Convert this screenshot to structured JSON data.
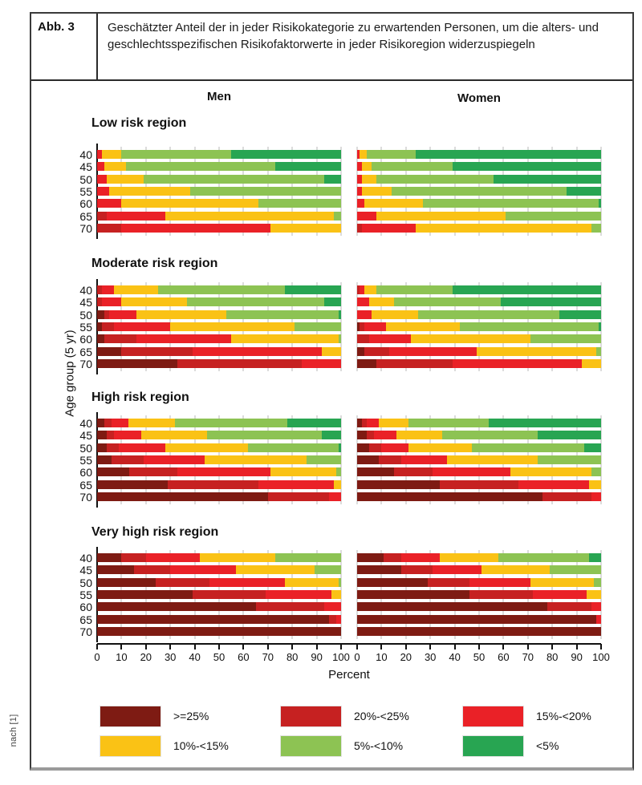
{
  "figure": {
    "label": "Abb. 3",
    "caption": "Geschätzter Anteil der in jeder Risikokategorie zu erwartenden Personen, um die alters- und geschlechtsspezifischen Risikofaktorwerte in jeder Risikoregion widerzuspiegeln",
    "source_note": "nach [1]"
  },
  "chart_data": {
    "type": "bar",
    "orientation": "horizontal",
    "stacked": true,
    "units": "percent",
    "column_headers": [
      "Men",
      "Women"
    ],
    "ylabel": "Age group (5 yr)",
    "xlabel": "Percent",
    "x_ticks": [
      0,
      10,
      20,
      30,
      40,
      50,
      60,
      70,
      80,
      90,
      100
    ],
    "xlim": [
      0,
      100
    ],
    "grid": true,
    "age_groups": [
      "40",
      "45",
      "50",
      "55",
      "60",
      "65",
      "70"
    ],
    "categories": [
      ">=25%",
      "20%-<25%",
      "15%-<20%",
      "10%-<15%",
      "5%-<10%",
      "<5%"
    ],
    "colors": [
      "#7E1B13",
      "#C62121",
      "#EA2127",
      "#FAC215",
      "#8DC353",
      "#28A552"
    ],
    "regions": [
      {
        "name": "Low risk region",
        "men": [
          [
            0,
            0,
            2,
            8,
            45,
            45
          ],
          [
            0,
            0,
            3,
            9,
            61,
            27
          ],
          [
            0,
            0,
            4,
            15,
            74,
            7
          ],
          [
            0,
            0,
            5,
            33,
            62,
            0
          ],
          [
            0,
            0,
            10,
            56,
            34,
            0
          ],
          [
            0,
            4,
            24,
            69,
            3,
            0
          ],
          [
            0,
            10,
            61,
            29,
            0,
            0
          ]
        ],
        "women": [
          [
            0,
            0,
            1,
            3,
            20,
            76
          ],
          [
            0,
            0,
            2,
            4,
            33,
            61
          ],
          [
            0,
            0,
            2,
            6,
            48,
            44
          ],
          [
            0,
            0,
            2,
            12,
            72,
            14
          ],
          [
            0,
            0,
            3,
            24,
            72,
            1
          ],
          [
            0,
            0,
            8,
            53,
            39,
            0
          ],
          [
            0,
            2,
            22,
            72,
            4,
            0
          ]
        ]
      },
      {
        "name": "Moderate risk region",
        "men": [
          [
            0,
            2,
            5,
            18,
            52,
            23
          ],
          [
            0,
            2,
            8,
            27,
            56,
            7
          ],
          [
            3,
            2,
            11,
            37,
            46,
            1
          ],
          [
            2,
            5,
            23,
            51,
            19,
            0
          ],
          [
            3,
            13,
            39,
            44,
            1,
            0
          ],
          [
            10,
            29,
            53,
            8,
            0,
            0
          ],
          [
            33,
            51,
            16,
            0,
            0,
            0
          ]
        ],
        "women": [
          [
            0,
            1,
            2,
            5,
            31,
            61
          ],
          [
            0,
            0,
            5,
            10,
            44,
            41
          ],
          [
            0,
            0,
            6,
            19,
            58,
            17
          ],
          [
            1,
            2,
            9,
            30,
            57,
            1
          ],
          [
            0,
            5,
            17,
            49,
            29,
            0
          ],
          [
            3,
            10,
            36,
            49,
            2,
            0
          ],
          [
            8,
            31,
            53,
            8,
            0,
            0
          ]
        ]
      },
      {
        "name": "High risk region",
        "men": [
          [
            3,
            3,
            7,
            19,
            46,
            22
          ],
          [
            4,
            3,
            11,
            27,
            47,
            8
          ],
          [
            4,
            5,
            19,
            34,
            37,
            1
          ],
          [
            6,
            13,
            25,
            42,
            14,
            0
          ],
          [
            13,
            20,
            38,
            27,
            2,
            0
          ],
          [
            29,
            37,
            31,
            3,
            0,
            0
          ],
          [
            70,
            25,
            5,
            0,
            0,
            0
          ]
        ],
        "women": [
          [
            2,
            2,
            5,
            12,
            33,
            46
          ],
          [
            4,
            3,
            9,
            19,
            39,
            26
          ],
          [
            5,
            5,
            11,
            26,
            46,
            7
          ],
          [
            9,
            9,
            19,
            37,
            26,
            0
          ],
          [
            15,
            16,
            32,
            33,
            4,
            0
          ],
          [
            34,
            32,
            29,
            5,
            0,
            0
          ],
          [
            76,
            20,
            4,
            0,
            0,
            0
          ]
        ]
      },
      {
        "name": "Very high risk region",
        "men": [
          [
            10,
            10,
            22,
            31,
            27,
            0
          ],
          [
            15,
            15,
            27,
            32,
            11,
            0
          ],
          [
            24,
            22,
            31,
            22,
            1,
            0
          ],
          [
            39,
            30,
            27,
            4,
            0,
            0
          ],
          [
            65,
            28,
            7,
            0,
            0,
            0
          ],
          [
            95,
            3,
            2,
            0,
            0,
            0
          ],
          [
            100,
            0,
            0,
            0,
            0,
            0
          ]
        ],
        "women": [
          [
            11,
            7,
            16,
            24,
            37,
            5
          ],
          [
            18,
            13,
            20,
            28,
            21,
            0
          ],
          [
            29,
            17,
            25,
            26,
            3,
            0
          ],
          [
            46,
            26,
            22,
            6,
            0,
            0
          ],
          [
            78,
            18,
            4,
            0,
            0,
            0
          ],
          [
            98,
            0,
            2,
            0,
            0,
            0
          ],
          [
            100,
            0,
            0,
            0,
            0,
            0
          ]
        ]
      }
    ]
  },
  "legend": {
    "items": [
      {
        "label": ">=25%",
        "color": "#7E1B13"
      },
      {
        "label": "20%-<25%",
        "color": "#C62121"
      },
      {
        "label": "15%-<20%",
        "color": "#EA2127"
      },
      {
        "label": "10%-<15%",
        "color": "#FAC215"
      },
      {
        "label": "5%-<10%",
        "color": "#8DC353"
      },
      {
        "label": "<5%",
        "color": "#28A552"
      }
    ]
  }
}
